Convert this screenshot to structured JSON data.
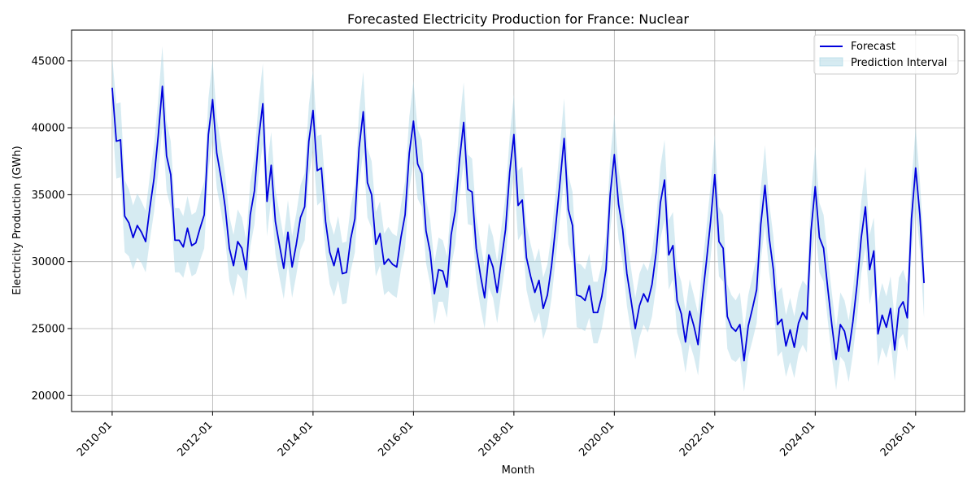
{
  "chart_data": {
    "type": "line",
    "title": "Forecasted Electricity Production for France: Nuclear",
    "xlabel": "Month",
    "ylabel": "Electricity Production (GWh)",
    "x_start": "2010-01",
    "x_ticks": [
      "2010-01",
      "2012-01",
      "2014-01",
      "2016-01",
      "2018-01",
      "2020-01",
      "2022-01",
      "2024-01",
      "2026-01"
    ],
    "y_ticks": [
      20000,
      25000,
      30000,
      35000,
      40000,
      45000
    ],
    "ylim": [
      18800,
      47300
    ],
    "grid": true,
    "legend": {
      "position": "top-right",
      "forecast_label": "Forecast",
      "interval_label": "Prediction Interval"
    },
    "colors": {
      "forecast": "#0000dd",
      "interval": "#add8e6"
    },
    "series": [
      {
        "name": "Forecast",
        "values": [
          43000,
          39000,
          39100,
          33400,
          32900,
          31800,
          32700,
          32200,
          31500,
          34000,
          36200,
          39400,
          43100,
          37900,
          36500,
          31600,
          31600,
          31100,
          32500,
          31200,
          31400,
          32500,
          33500,
          39500,
          42100,
          38100,
          36300,
          34100,
          31000,
          29700,
          31500,
          31000,
          29400,
          33500,
          35300,
          39200,
          41800,
          34500,
          37200,
          33000,
          31200,
          29500,
          32200,
          29600,
          31300,
          33300,
          34100,
          39000,
          41300,
          36800,
          37000,
          33000,
          30700,
          29700,
          31000,
          29100,
          29200,
          31700,
          33200,
          38500,
          41200,
          35900,
          35000,
          31300,
          32100,
          29800,
          30200,
          29800,
          29600,
          31800,
          33500,
          38100,
          40500,
          37300,
          36600,
          32300,
          30700,
          27600,
          29400,
          29300,
          28100,
          32000,
          33800,
          37600,
          40400,
          35400,
          35200,
          31000,
          29000,
          27300,
          30500,
          29600,
          27700,
          30100,
          32400,
          36700,
          39500,
          34200,
          34600,
          30300,
          28900,
          27700,
          28600,
          26500,
          27500,
          29700,
          32700,
          35900,
          39200,
          33900,
          32700,
          27500,
          27400,
          27100,
          28200,
          26200,
          26200,
          27400,
          29400,
          35000,
          38000,
          34300,
          32400,
          29100,
          27100,
          25000,
          26700,
          27600,
          27000,
          28300,
          30700,
          34400,
          36100,
          30500,
          31200,
          27100,
          26100,
          24000,
          26300,
          25200,
          23800,
          27200,
          30000,
          33000,
          36500,
          31500,
          31000,
          25900,
          25100,
          24800,
          25300,
          22600,
          25200,
          26500,
          27900,
          32800,
          35700,
          31800,
          29400,
          25300,
          25700,
          23700,
          24900,
          23600,
          25400,
          26200,
          25700,
          32300,
          35600,
          31800,
          31000,
          28000,
          25200,
          22700,
          25300,
          24800,
          23300,
          25500,
          28300,
          31800,
          34100,
          29400,
          30800,
          24600,
          26000,
          25100,
          26500,
          23400,
          26500,
          27000,
          25800,
          33200,
          37000,
          33500,
          28400
        ]
      }
    ],
    "interval_halfwidth": [
      2300,
      2800,
      2800,
      2700,
      2500,
      2400,
      2400,
      2300,
      2300,
      2400,
      2500,
      2700,
      3000,
      2600,
      2500,
      2400,
      2400,
      2300,
      2400,
      2300,
      2300,
      2400,
      2500,
      2700,
      3000,
      2600,
      2500,
      2400,
      2400,
      2300,
      2400,
      2300,
      2300,
      2400,
      2500,
      2700,
      3000,
      2600,
      2500,
      2400,
      2400,
      2300,
      2400,
      2300,
      2300,
      2400,
      2500,
      2700,
      3000,
      2600,
      2500,
      2400,
      2400,
      2300,
      2400,
      2300,
      2300,
      2400,
      2500,
      2700,
      3000,
      2600,
      2500,
      2400,
      2400,
      2300,
      2400,
      2300,
      2300,
      2400,
      2500,
      2700,
      3000,
      2600,
      2500,
      2400,
      2400,
      2300,
      2400,
      2300,
      2300,
      2400,
      2500,
      2700,
      3000,
      2600,
      2500,
      2400,
      2400,
      2300,
      2400,
      2300,
      2300,
      2400,
      2500,
      2700,
      3000,
      2600,
      2500,
      2400,
      2400,
      2300,
      2400,
      2300,
      2300,
      2400,
      2500,
      2700,
      3000,
      2600,
      2500,
      2400,
      2400,
      2300,
      2400,
      2300,
      2300,
      2400,
      2500,
      2700,
      3000,
      2600,
      2500,
      2400,
      2400,
      2300,
      2400,
      2300,
      2300,
      2400,
      2500,
      2700,
      3000,
      2600,
      2500,
      2400,
      2400,
      2300,
      2400,
      2300,
      2300,
      2400,
      2500,
      2700,
      3000,
      2600,
      2500,
      2400,
      2400,
      2300,
      2400,
      2300,
      2300,
      2400,
      2500,
      2700,
      3000,
      2600,
      2500,
      2400,
      2400,
      2300,
      2400,
      2300,
      2300,
      2400,
      2500,
      2700,
      3000,
      2600,
      2500,
      2400,
      2400,
      2300,
      2400,
      2300,
      2300,
      2400,
      2500,
      2700,
      3000,
      2600,
      2500,
      2400,
      2400,
      2300,
      2400,
      2300,
      2300,
      2400,
      2500,
      2700,
      3000,
      2600,
      2600
    ]
  }
}
